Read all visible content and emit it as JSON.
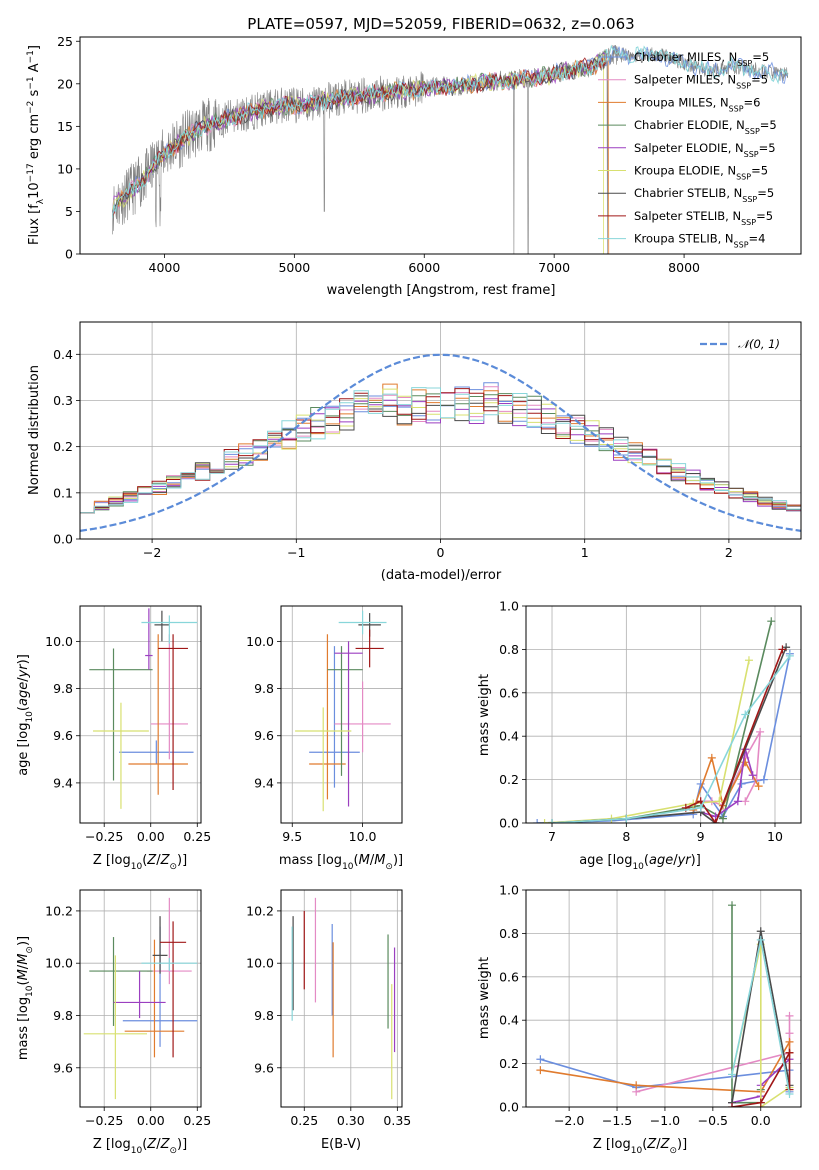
{
  "title": "PLATE=0597, MJD=52059, FIBERID=0632, z=0.063",
  "model_colors": [
    "#6b8ede",
    "#e48ac4",
    "#e07b2e",
    "#5a8a5e",
    "#9b3fc0",
    "#d8e070",
    "#4a4a4a",
    "#a01818",
    "#88d6da"
  ],
  "chart_data": [
    {
      "id": "spectrum",
      "type": "line",
      "xlabel": "wavelength [Angstrom, rest frame]",
      "ylabel": "Flux [f_λ 10^-17 erg cm^-2 s^-1 A^-1]",
      "xlim": [
        3350,
        8900
      ],
      "ylim": [
        0,
        25.5
      ],
      "xticks": [
        4000,
        5000,
        6000,
        7000,
        8000
      ],
      "yticks": [
        0,
        5,
        10,
        15,
        20,
        25
      ],
      "grid": false,
      "legend_position": "right",
      "data_series_color": "#808080",
      "data_continuum": [
        [
          3600,
          5.5
        ],
        [
          3750,
          7.5
        ],
        [
          3850,
          9
        ],
        [
          3950,
          11
        ],
        [
          4050,
          12.5
        ],
        [
          4150,
          13.5
        ],
        [
          4300,
          15
        ],
        [
          4500,
          16
        ],
        [
          4700,
          16.8
        ],
        [
          4900,
          17.5
        ],
        [
          5100,
          17.5
        ],
        [
          5300,
          18.2
        ],
        [
          5500,
          18.5
        ],
        [
          5700,
          19
        ],
        [
          5900,
          19.3
        ],
        [
          6100,
          19.6
        ],
        [
          6300,
          19.8
        ],
        [
          6500,
          20.2
        ],
        [
          6700,
          20.5
        ],
        [
          6900,
          20.8
        ],
        [
          7100,
          21.5
        ],
        [
          7300,
          22
        ],
        [
          7450,
          23.5
        ],
        [
          7600,
          23.2
        ],
        [
          7800,
          23.5
        ],
        [
          8000,
          22.5
        ],
        [
          8200,
          21.5
        ],
        [
          8400,
          22
        ],
        [
          8600,
          21.5
        ],
        [
          8800,
          21
        ]
      ],
      "models_end_x": [
        8800,
        7400,
        7420,
        7410,
        7400,
        7380,
        7400,
        7420,
        8800
      ],
      "legend": [
        {
          "label": "Chabrier MILES",
          "nssp": "5"
        },
        {
          "label": "Salpeter MILES",
          "nssp": "5"
        },
        {
          "label": "Kroupa MILES",
          "nssp": "6"
        },
        {
          "label": "Chabrier ELODIE",
          "nssp": "5"
        },
        {
          "label": "Salpeter ELODIE",
          "nssp": "5"
        },
        {
          "label": "Kroupa ELODIE",
          "nssp": "5"
        },
        {
          "label": "Chabrier STELIB",
          "nssp": "5"
        },
        {
          "label": "Salpeter STELIB",
          "nssp": "5"
        },
        {
          "label": "Kroupa STELIB",
          "nssp": "4"
        }
      ]
    },
    {
      "id": "residuals",
      "type": "line",
      "xlabel": "(data-model)/error",
      "ylabel": "Normed distribution",
      "xlim": [
        -2.5,
        2.5
      ],
      "ylim": [
        0,
        0.47
      ],
      "xticks": [
        -2,
        -1,
        0,
        1,
        2
      ],
      "yticks": [
        0.0,
        0.1,
        0.2,
        0.3,
        0.4
      ],
      "grid": true,
      "legend_position": "top-right",
      "legend": "𝒩(0, 1)",
      "bin_width": 0.1,
      "bin_start": -2.5
    },
    {
      "id": "age_vs_Z",
      "type": "scatter",
      "xlabel": "Z [log10(Z/Z⊙)]",
      "ylabel": "age  [log10(age/yr)]",
      "xlim": [
        -0.38,
        0.27
      ],
      "ylim": [
        9.23,
        10.15
      ],
      "xticks": [
        -0.25,
        0.0,
        0.25
      ],
      "yticks": [
        9.4,
        9.6,
        9.8,
        10.0
      ],
      "grid": true,
      "errorbars": [
        {
          "x": 0.03,
          "xerr": [
            0.2,
            0.2
          ],
          "y": 9.53,
          "yerr": [
            0.05,
            0.05
          ]
        },
        {
          "x": 0.1,
          "xerr": [
            0.1,
            0.1
          ],
          "y": 9.65,
          "yerr": [
            0.15,
            0.38
          ]
        },
        {
          "x": 0.04,
          "xerr": [
            0.16,
            0.16
          ],
          "y": 9.48,
          "yerr": [
            0.13,
            0.55
          ]
        },
        {
          "x": -0.2,
          "xerr": [
            0.13,
            0.21
          ],
          "y": 9.88,
          "yerr": [
            0.47,
            0.09
          ]
        },
        {
          "x": -0.01,
          "xerr": [
            0.02,
            0.02
          ],
          "y": 9.94,
          "yerr": [
            0.06,
            0.2
          ]
        },
        {
          "x": -0.16,
          "xerr": [
            0.15,
            0.15
          ],
          "y": 9.62,
          "yerr": [
            0.33,
            0.12
          ]
        },
        {
          "x": 0.06,
          "xerr": [
            0.04,
            0.04
          ],
          "y": 10.07,
          "yerr": [
            0.07,
            0.06
          ]
        },
        {
          "x": 0.12,
          "xerr": [
            0.08,
            0.08
          ],
          "y": 9.97,
          "yerr": [
            0.6,
            0.06
          ]
        },
        {
          "x": 0.1,
          "xerr": [
            0.15,
            0.15
          ],
          "y": 10.08,
          "yerr": [
            0.09,
            0.03
          ]
        }
      ]
    },
    {
      "id": "age_vs_mass",
      "type": "scatter",
      "xlabel": "mass [log10(M/M⊙)]",
      "ylabel": "",
      "xlim": [
        9.42,
        10.28
      ],
      "ylim": [
        9.23,
        10.15
      ],
      "xticks": [
        9.5,
        10.0
      ],
      "yticks": [
        9.4,
        9.6,
        9.8,
        10.0
      ],
      "grid": true,
      "errorbars": [
        {
          "x": 9.8,
          "xerr": [
            0.18,
            0.18
          ],
          "y": 9.53,
          "yerr": [
            0.15,
            0.45
          ]
        },
        {
          "x": 10.0,
          "xerr": [
            0.2,
            0.2
          ],
          "y": 9.65,
          "yerr": [
            0.12,
            0.18
          ]
        },
        {
          "x": 9.75,
          "xerr": [
            0.13,
            0.13
          ],
          "y": 9.48,
          "yerr": [
            0.15,
            0.55
          ]
        },
        {
          "x": 9.85,
          "xerr": [
            0.1,
            0.15
          ],
          "y": 9.88,
          "yerr": [
            0.45,
            0.1
          ]
        },
        {
          "x": 9.9,
          "xerr": [
            0.1,
            0.1
          ],
          "y": 9.95,
          "yerr": [
            0.65,
            0.05
          ]
        },
        {
          "x": 9.72,
          "xerr": [
            0.2,
            0.2
          ],
          "y": 9.62,
          "yerr": [
            0.34,
            0.1
          ]
        },
        {
          "x": 10.05,
          "xerr": [
            0.08,
            0.08
          ],
          "y": 10.07,
          "yerr": [
            0.05,
            0.05
          ]
        },
        {
          "x": 10.05,
          "xerr": [
            0.1,
            0.1
          ],
          "y": 9.97,
          "yerr": [
            0.08,
            0.08
          ]
        },
        {
          "x": 10.0,
          "xerr": [
            0.17,
            0.17
          ],
          "y": 10.08,
          "yerr": [
            0.05,
            0.05
          ]
        }
      ]
    },
    {
      "id": "weight_vs_age",
      "type": "line",
      "xlabel": "age  [log10(age/yr)]",
      "ylabel": "mass weight",
      "xlim": [
        6.65,
        10.35
      ],
      "ylim": [
        0,
        1
      ],
      "xticks": [
        7,
        8,
        9,
        10
      ],
      "yticks": [
        0.0,
        0.2,
        0.4,
        0.6,
        0.8,
        1.0
      ],
      "grid": true,
      "series": [
        {
          "points": [
            [
              6.8,
              0.0
            ],
            [
              7.8,
              0.01
            ],
            [
              8.9,
              0.04
            ],
            [
              9.0,
              0.18
            ],
            [
              9.3,
              0.03
            ],
            [
              9.55,
              0.18
            ],
            [
              9.85,
              0.2
            ],
            [
              10.2,
              0.78
            ]
          ]
        },
        {
          "points": [
            [
              9.0,
              0.1
            ],
            [
              9.15,
              0.1
            ],
            [
              9.3,
              0.08
            ],
            [
              9.6,
              0.3
            ],
            [
              9.8,
              0.42
            ],
            [
              9.75,
              0.2
            ],
            [
              9.6,
              0.1
            ]
          ]
        },
        {
          "points": [
            [
              8.9,
              0.06
            ],
            [
              9.15,
              0.3
            ],
            [
              9.3,
              0.08
            ],
            [
              9.6,
              0.28
            ],
            [
              9.78,
              0.17
            ]
          ]
        },
        {
          "points": [
            [
              7.0,
              0.0
            ],
            [
              8.0,
              0.02
            ],
            [
              9.0,
              0.08
            ],
            [
              9.3,
              0.02
            ],
            [
              9.95,
              0.93
            ]
          ]
        },
        {
          "points": [
            [
              9.0,
              0.05
            ],
            [
              9.2,
              0.03
            ],
            [
              9.5,
              0.1
            ],
            [
              9.6,
              0.34
            ],
            [
              9.7,
              0.22
            ]
          ]
        },
        {
          "points": [
            [
              6.9,
              0.0
            ],
            [
              7.8,
              0.02
            ],
            [
              8.9,
              0.09
            ],
            [
              9.25,
              0.1
            ],
            [
              9.65,
              0.75
            ]
          ]
        },
        {
          "points": [
            [
              7.0,
              0.0
            ],
            [
              8.0,
              0.02
            ],
            [
              9.0,
              0.05
            ],
            [
              9.2,
              0.0
            ],
            [
              10.15,
              0.81
            ]
          ]
        },
        {
          "points": [
            [
              8.8,
              0.07
            ],
            [
              9.0,
              0.1
            ],
            [
              9.2,
              0.0
            ],
            [
              10.1,
              0.8
            ]
          ]
        },
        {
          "points": [
            [
              7.0,
              0.0
            ],
            [
              8.0,
              0.02
            ],
            [
              9.0,
              0.07
            ],
            [
              9.6,
              0.5
            ],
            [
              10.2,
              0.77
            ]
          ]
        }
      ]
    },
    {
      "id": "mass_vs_Z",
      "type": "scatter",
      "xlabel": "Z [log10(Z/Z⊙)]",
      "ylabel": "mass [log10(M/M⊙)]",
      "xlim": [
        -0.38,
        0.27
      ],
      "ylim": [
        9.45,
        10.28
      ],
      "xticks": [
        -0.25,
        0.0,
        0.25
      ],
      "yticks": [
        9.6,
        9.8,
        10.0,
        10.2
      ],
      "grid": true,
      "errorbars": [
        {
          "x": 0.05,
          "xerr": [
            0.2,
            0.2
          ],
          "y": 9.78,
          "yerr": [
            0.1,
            0.36
          ]
        },
        {
          "x": 0.1,
          "xerr": [
            0.12,
            0.12
          ],
          "y": 9.97,
          "yerr": [
            0.05,
            0.28
          ]
        },
        {
          "x": 0.02,
          "xerr": [
            0.16,
            0.16
          ],
          "y": 9.74,
          "yerr": [
            0.1,
            0.35
          ]
        },
        {
          "x": -0.2,
          "xerr": [
            0.13,
            0.21
          ],
          "y": 9.97,
          "yerr": [
            0.21,
            0.13
          ]
        },
        {
          "x": -0.06,
          "xerr": [
            0.14,
            0.14
          ],
          "y": 9.85,
          "yerr": [
            0.06,
            0.12
          ]
        },
        {
          "x": -0.19,
          "xerr": [
            0.17,
            0.17
          ],
          "y": 9.73,
          "yerr": [
            0.25,
            0.3
          ]
        },
        {
          "x": 0.05,
          "xerr": [
            0.04,
            0.04
          ],
          "y": 10.03,
          "yerr": [
            0.07,
            0.15
          ]
        },
        {
          "x": 0.12,
          "xerr": [
            0.07,
            0.07
          ],
          "y": 10.08,
          "yerr": [
            0.44,
            0.08
          ]
        },
        {
          "x": 0.1,
          "xerr": [
            0.15,
            0.15
          ],
          "y": 10.0,
          "yerr": [
            0.03,
            0.02
          ]
        }
      ]
    },
    {
      "id": "mass_vs_ebv",
      "type": "scatter",
      "xlabel": "E(B-V)",
      "ylabel": "",
      "xlim": [
        0.225,
        0.355
      ],
      "ylim": [
        9.45,
        10.28
      ],
      "xticks": [
        0.25,
        0.3,
        0.35
      ],
      "yticks": [
        9.6,
        9.8,
        10.0,
        10.2
      ],
      "grid": true,
      "errorbars": [
        {
          "x": 0.28,
          "y": 10.0,
          "yerr": [
            0.2,
            0.15
          ]
        },
        {
          "x": 0.262,
          "y": 10.05,
          "yerr": [
            0.2,
            0.2
          ]
        },
        {
          "x": 0.281,
          "y": 9.86,
          "yerr": [
            0.22,
            0.22
          ]
        },
        {
          "x": 0.34,
          "y": 9.93,
          "yerr": [
            0.18,
            0.18
          ]
        },
        {
          "x": 0.347,
          "y": 9.86,
          "yerr": [
            0.2,
            0.2
          ]
        },
        {
          "x": 0.344,
          "y": 9.7,
          "yerr": [
            0.22,
            0.22
          ]
        },
        {
          "x": 0.238,
          "y": 10.0,
          "yerr": [
            0.18,
            0.18
          ]
        },
        {
          "x": 0.25,
          "y": 10.08,
          "yerr": [
            0.18,
            0.12
          ]
        },
        {
          "x": 0.237,
          "y": 9.96,
          "yerr": [
            0.18,
            0.18
          ]
        }
      ]
    },
    {
      "id": "weight_vs_Z",
      "type": "line",
      "xlabel": "Z [log10(Z/Z⊙)]",
      "ylabel": "mass weight",
      "xlim": [
        -2.45,
        0.42
      ],
      "ylim": [
        0,
        1
      ],
      "xticks": [
        -2.0,
        -1.5,
        -1.0,
        -0.5,
        0.0
      ],
      "yticks": [
        0.0,
        0.2,
        0.4,
        0.6,
        0.8,
        1.0
      ],
      "grid": true,
      "series": [
        {
          "points": [
            [
              -2.3,
              0.22
            ],
            [
              -1.3,
              0.09
            ],
            [
              0.3,
              0.17
            ],
            [
              0.3,
              0.07
            ]
          ]
        },
        {
          "points": [
            [
              -1.3,
              0.07
            ],
            [
              0.3,
              0.25
            ],
            [
              0.3,
              0.42
            ],
            [
              0.3,
              0.34
            ]
          ]
        },
        {
          "points": [
            [
              -2.3,
              0.17
            ],
            [
              -1.3,
              0.1
            ],
            [
              0.0,
              0.07
            ],
            [
              0.3,
              0.3
            ],
            [
              0.3,
              0.25
            ]
          ]
        },
        {
          "points": [
            [
              -0.3,
              0.93
            ],
            [
              -0.3,
              0.02
            ],
            [
              0.0,
              0.02
            ],
            [
              0.0,
              0.08
            ]
          ]
        },
        {
          "points": [
            [
              -0.3,
              0.02
            ],
            [
              0.0,
              0.05
            ],
            [
              0.0,
              0.1
            ],
            [
              0.3,
              0.22
            ]
          ]
        },
        {
          "points": [
            [
              -0.3,
              0.15
            ],
            [
              0.0,
              0.75
            ],
            [
              0.0,
              0.0
            ],
            [
              0.3,
              0.09
            ]
          ]
        },
        {
          "points": [
            [
              -0.3,
              0.02
            ],
            [
              0.0,
              0.81
            ],
            [
              0.3,
              0.1
            ]
          ]
        },
        {
          "points": [
            [
              -0.3,
              0.0
            ],
            [
              0.0,
              0.02
            ],
            [
              0.3,
              0.25
            ],
            [
              0.3,
              0.08
            ]
          ]
        },
        {
          "points": [
            [
              -0.3,
              0.15
            ],
            [
              0.0,
              0.77
            ],
            [
              0.3,
              0.06
            ]
          ]
        }
      ]
    }
  ]
}
